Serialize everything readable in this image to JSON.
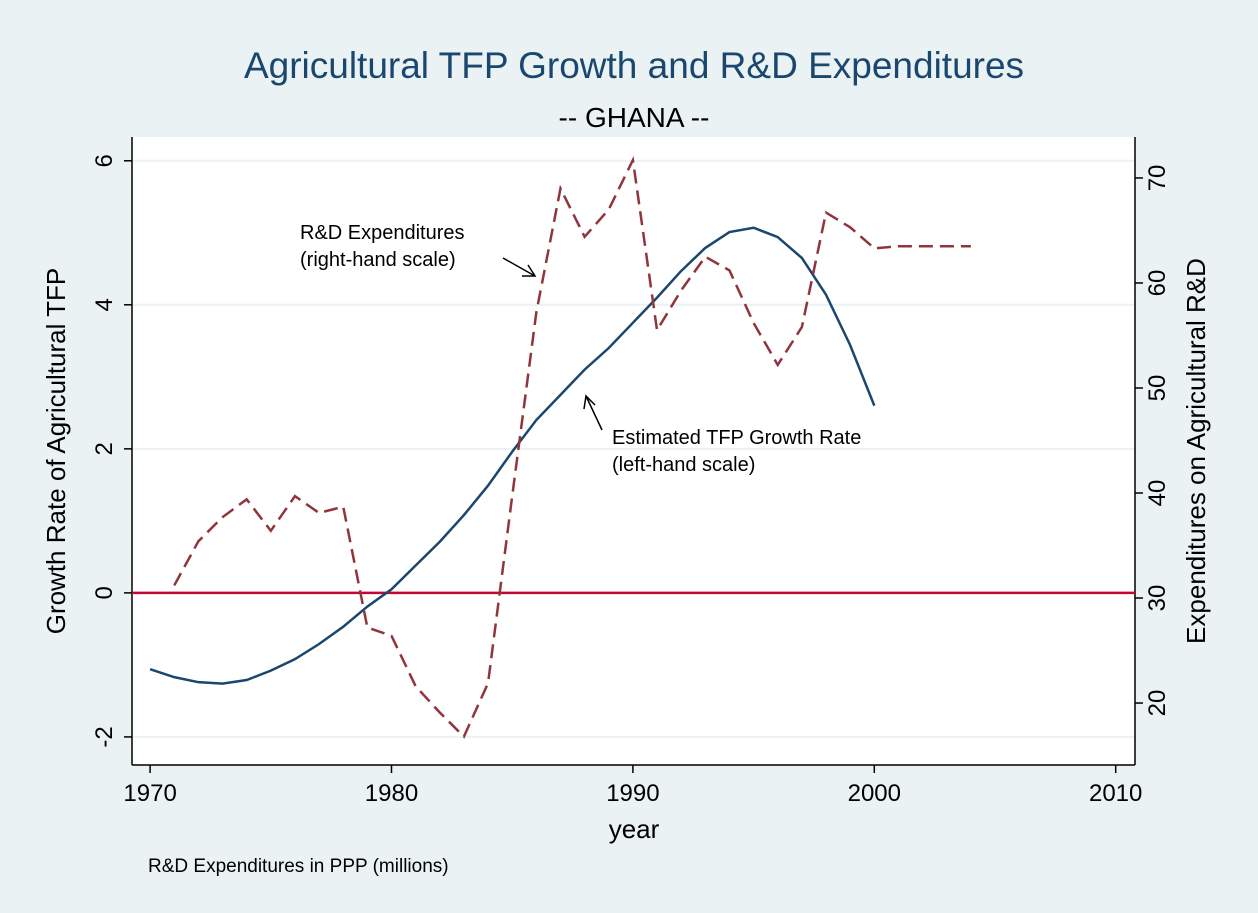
{
  "chart_data": {
    "type": "line",
    "title": "Agricultural TFP Growth and R&D Expenditures",
    "subtitle": "-- GHANA --",
    "xlabel": "year",
    "ylabel": "Growth Rate of Agricultural TFP",
    "y2label": "Expenditures on Agricultural R&D",
    "note": "R&D Expenditures in PPP (millions)",
    "annotations": [
      [
        "R&D Expenditures",
        "(right-hand scale)"
      ],
      [
        "Estimated TFP Growth Rate",
        "(left-hand scale)"
      ]
    ],
    "xlim": [
      1969.25,
      2010.8
    ],
    "xticks": [
      1970,
      1980,
      1990,
      2000,
      2010
    ],
    "ylim": [
      -2.39,
      6.33
    ],
    "yticks": [
      -2,
      0,
      2,
      4,
      6
    ],
    "y2lim": [
      14.1,
      73.9
    ],
    "y2ticks": [
      20,
      30,
      40,
      50,
      60,
      70
    ],
    "grid": true,
    "reference_line": {
      "value": 0,
      "color": "#c10534"
    },
    "series": [
      {
        "name": "Estimated TFP Growth Rate",
        "color": "#1a476f",
        "axis": "y",
        "x": [
          1970,
          1971,
          1972,
          1973,
          1974,
          1975,
          1976,
          1977,
          1978,
          1979,
          1980,
          1981,
          1982,
          1983,
          1984,
          1985,
          1986,
          1987,
          1988,
          1989,
          1990,
          1991,
          1992,
          1993,
          1994,
          1995,
          1996,
          1997,
          1998,
          1999,
          2000
        ],
        "values": [
          -1.06,
          -1.17,
          -1.24,
          -1.26,
          -1.21,
          -1.08,
          -0.92,
          -0.71,
          -0.47,
          -0.19,
          0.05,
          0.38,
          0.71,
          1.08,
          1.49,
          1.96,
          2.4,
          2.75,
          3.1,
          3.4,
          3.75,
          4.1,
          4.47,
          4.79,
          5.01,
          5.07,
          4.94,
          4.65,
          4.14,
          3.44,
          2.6
        ]
      },
      {
        "name": "R&D Expenditures",
        "color": "#90353b",
        "axis": "y2",
        "dashed": true,
        "x": [
          1971,
          1972,
          1973,
          1974,
          1975,
          1976,
          1977,
          1978,
          1979,
          1980,
          1981,
          1982,
          1983,
          1984,
          1985,
          1986,
          1987,
          1988,
          1989,
          1990,
          1991,
          1992,
          1993,
          1994,
          1995,
          1996,
          1997,
          1998,
          1999,
          2000,
          2001,
          2002,
          2003,
          2004
        ],
        "values": [
          31.2,
          35.4,
          37.7,
          39.4,
          36.4,
          39.7,
          38.1,
          38.7,
          27.2,
          26.4,
          21.6,
          19.1,
          16.8,
          21.9,
          39.7,
          57.2,
          69.0,
          64.4,
          67.0,
          71.7,
          55.5,
          59.3,
          62.5,
          61.2,
          56.2,
          52.2,
          55.8,
          66.7,
          65.3,
          63.3,
          63.5,
          63.5,
          63.5,
          63.5
        ]
      }
    ]
  }
}
